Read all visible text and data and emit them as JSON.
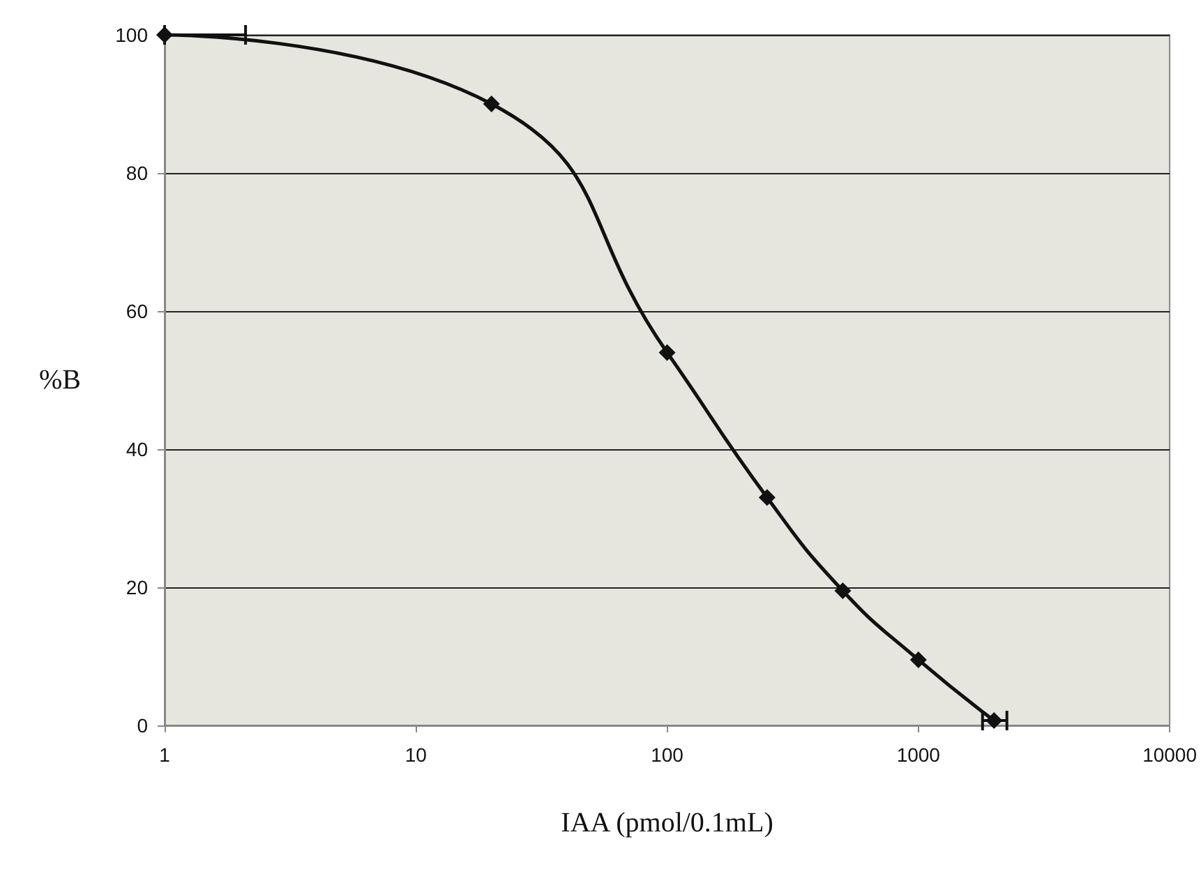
{
  "chart_data": {
    "type": "line",
    "xlabel": "IAA (pmol/0.1mL)",
    "ylabel": "%B",
    "x": [
      1,
      20,
      100,
      250,
      500,
      1000,
      2000
    ],
    "series": [
      {
        "color": "#111111",
        "values": [
          100,
          90,
          54,
          33,
          19.5,
          9.5,
          0.7
        ],
        "xerrors": [
          [
            1,
            2.1
          ],
          null,
          null,
          null,
          null,
          null,
          [
            1800,
            2250
          ]
        ]
      }
    ],
    "log": "x",
    "xlim": [
      1,
      10000
    ],
    "xticks": [
      1,
      10,
      100,
      1000,
      10000
    ],
    "ylim": [
      0,
      100
    ],
    "yticks": [
      0,
      20,
      40,
      60,
      80,
      100
    ],
    "grid": "y",
    "marker": "diamond",
    "line_style": "solid"
  }
}
